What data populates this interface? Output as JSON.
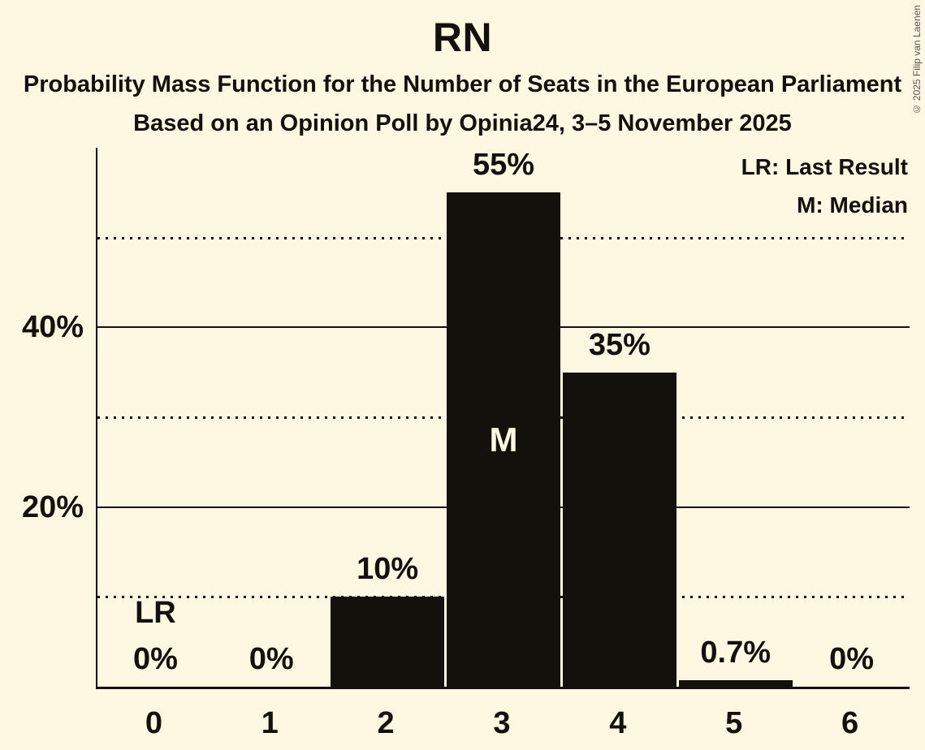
{
  "header": {
    "title": "RN",
    "subtitle1": "Probability Mass Function for the Number of Seats in the European Parliament",
    "subtitle2": "Based on an Opinion Poll by Opinia24, 3–5 November 2025"
  },
  "legend": {
    "last_result": "LR: Last Result",
    "median": "M: Median"
  },
  "copyright": "© 2025 Filip van Laenen",
  "colors": {
    "background": "#FCF8E2",
    "bar": "#14110C",
    "text": "#14110C",
    "median_text": "#FCF8E2",
    "copyright_text": "#56544E"
  },
  "chart_data": {
    "type": "bar",
    "title": "RN",
    "xlabel": "",
    "ylabel": "",
    "categories": [
      "0",
      "1",
      "2",
      "3",
      "4",
      "5",
      "6"
    ],
    "values": [
      0,
      0,
      10,
      55,
      35,
      0.7,
      0
    ],
    "bar_labels": [
      "0%",
      "0%",
      "10%",
      "55%",
      "35%",
      "0.7%",
      "0%"
    ],
    "ylim": [
      0,
      60
    ],
    "grid": true,
    "gridlines": [
      {
        "value": 10,
        "style": "dotted"
      },
      {
        "value": 20,
        "style": "solid"
      },
      {
        "value": 30,
        "style": "dotted"
      },
      {
        "value": 40,
        "style": "solid"
      },
      {
        "value": 50,
        "style": "dotted"
      }
    ],
    "y_ticks": [
      {
        "value": 20,
        "label": "20%"
      },
      {
        "value": 40,
        "label": "40%"
      }
    ],
    "annotations": {
      "last_result_label": "LR",
      "last_result_category_index": 0,
      "median_label": "M",
      "median_category_index": 3
    },
    "legend_position": "top-right"
  }
}
